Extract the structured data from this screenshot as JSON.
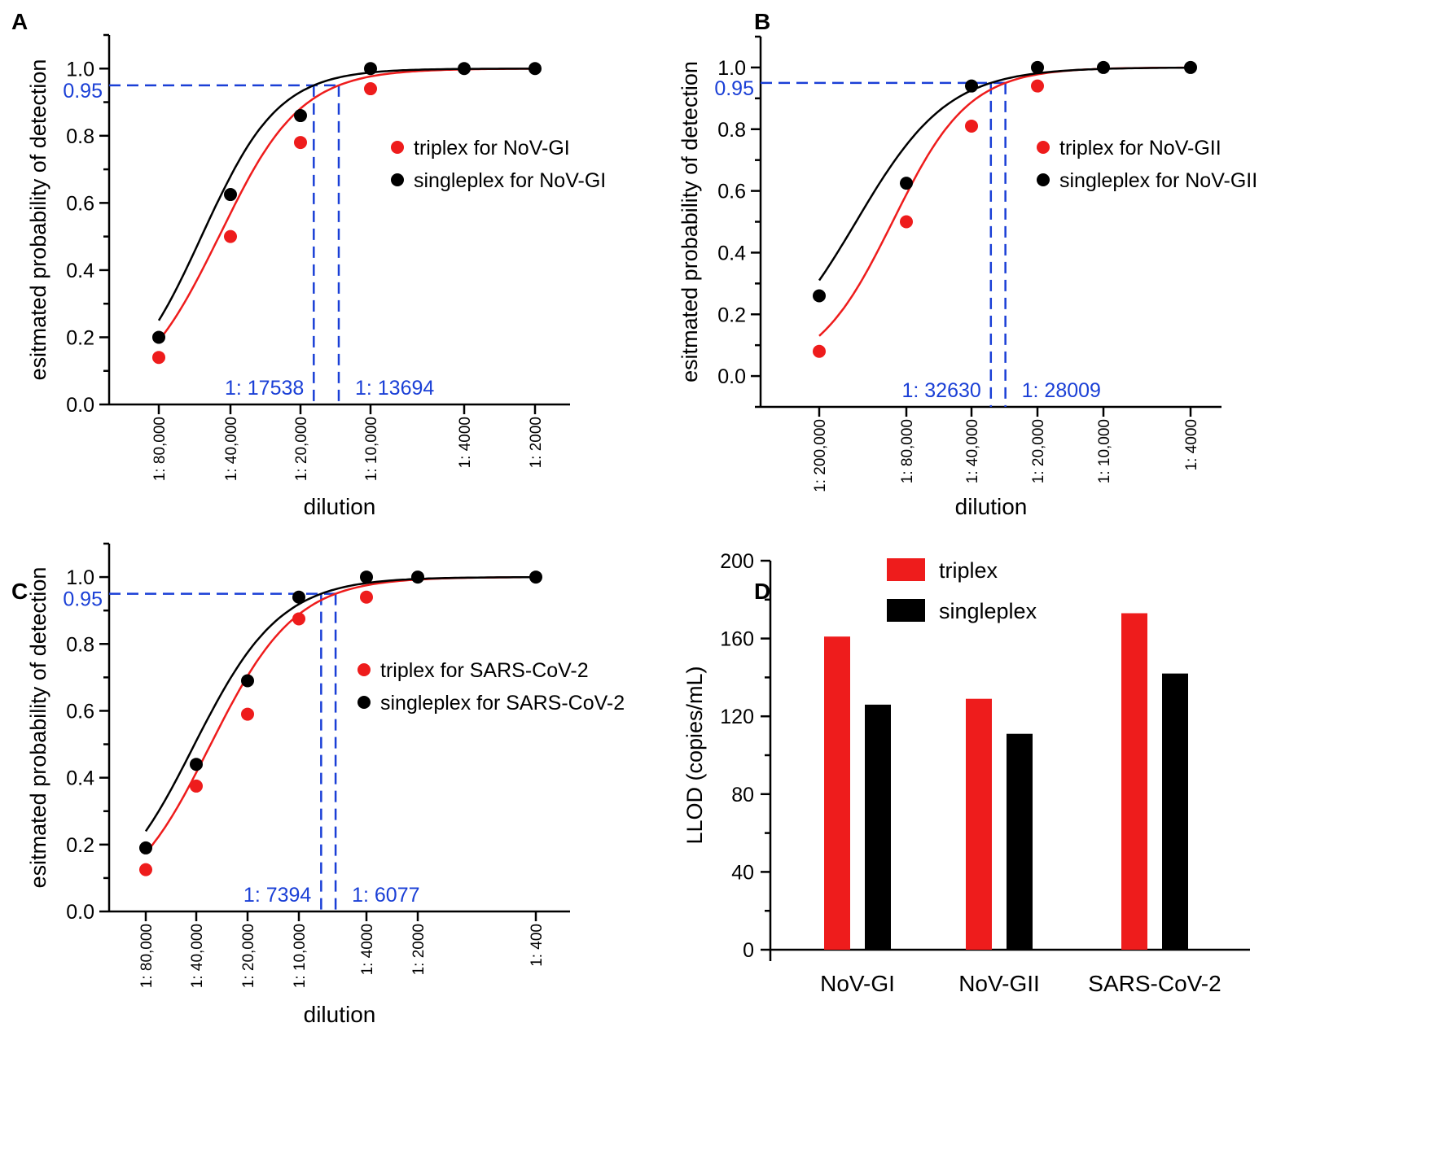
{
  "colors": {
    "triplex": "#ee1c1c",
    "singleplex": "#000000",
    "threshold": "#1a3fd6",
    "axis": "#000000"
  },
  "chart_data": [
    {
      "panel": "A",
      "type": "scatter",
      "xlabel": "dilution",
      "ylabel": "esitmated probability of detection",
      "x_tick_labels": [
        "1: 80,000",
        "1: 40,000",
        "1: 20,000",
        "1: 10,000",
        "1: 4000",
        "1: 2000"
      ],
      "x_dilution": [
        80000,
        40000,
        20000,
        10000,
        4000,
        2000
      ],
      "ylim": [
        0,
        1.1
      ],
      "y_ticks": [
        "0.0",
        "0.2",
        "0.4",
        "0.6",
        "0.8",
        "1.0"
      ],
      "threshold": {
        "y": 0.95,
        "label": "0.95"
      },
      "series": [
        {
          "name": "triplex for NoV-GI",
          "color_key": "triplex",
          "points": [
            [
              80000,
              0.14
            ],
            [
              40000,
              0.5
            ],
            [
              20000,
              0.78
            ],
            [
              10000,
              0.94
            ]
          ],
          "cutoff": {
            "x": 13694,
            "label": "1: 13694"
          }
        },
        {
          "name": "singleplex for NoV-GI",
          "color_key": "singleplex",
          "points": [
            [
              80000,
              0.2
            ],
            [
              40000,
              0.625
            ],
            [
              20000,
              0.86
            ],
            [
              10000,
              1.0
            ],
            [
              4000,
              1.0
            ],
            [
              2000,
              1.0
            ]
          ],
          "cutoff": {
            "x": 17538,
            "label": "1: 17538"
          }
        }
      ]
    },
    {
      "panel": "B",
      "type": "scatter",
      "xlabel": "dilution",
      "ylabel": "esitmated probability of detection",
      "x_tick_labels": [
        "1: 200,000",
        "1: 80,000",
        "1: 40,000",
        "1: 20,000",
        "1: 10,000",
        "1: 4000"
      ],
      "x_dilution": [
        200000,
        80000,
        40000,
        20000,
        10000,
        4000
      ],
      "ylim": [
        -0.1,
        1.1
      ],
      "y_ticks": [
        "0.0",
        "0.2",
        "0.4",
        "0.6",
        "0.8",
        "1.0"
      ],
      "threshold": {
        "y": 0.95,
        "label": "0.95"
      },
      "series": [
        {
          "name": "triplex for NoV-GII",
          "color_key": "triplex",
          "points": [
            [
              200000,
              0.08
            ],
            [
              80000,
              0.5
            ],
            [
              40000,
              0.81
            ],
            [
              20000,
              0.94
            ]
          ],
          "cutoff": {
            "x": 28009,
            "label": "1: 28009"
          }
        },
        {
          "name": "singleplex for NoV-GII",
          "color_key": "singleplex",
          "points": [
            [
              200000,
              0.26
            ],
            [
              80000,
              0.625
            ],
            [
              40000,
              0.94
            ],
            [
              20000,
              1.0
            ],
            [
              10000,
              1.0
            ],
            [
              4000,
              1.0
            ]
          ],
          "cutoff": {
            "x": 32630,
            "label": "1: 32630"
          }
        }
      ]
    },
    {
      "panel": "C",
      "type": "scatter",
      "xlabel": "dilution",
      "ylabel": "esitmated probability of detection",
      "x_tick_labels": [
        "1: 80,000",
        "1: 40,000",
        "1: 20,000",
        "1: 10,000",
        "1: 4000",
        "1: 2000",
        "1: 400"
      ],
      "x_dilution": [
        80000,
        40000,
        20000,
        10000,
        4000,
        2000,
        400
      ],
      "ylim": [
        0,
        1.1
      ],
      "y_ticks": [
        "0.0",
        "0.2",
        "0.4",
        "0.6",
        "0.8",
        "1.0"
      ],
      "threshold": {
        "y": 0.95,
        "label": "0.95"
      },
      "series": [
        {
          "name": "triplex for SARS-CoV-2",
          "color_key": "triplex",
          "points": [
            [
              80000,
              0.125
            ],
            [
              40000,
              0.375
            ],
            [
              20000,
              0.59
            ],
            [
              10000,
              0.875
            ],
            [
              4000,
              0.94
            ]
          ],
          "cutoff": {
            "x": 6077,
            "label": "1: 6077"
          }
        },
        {
          "name": "singleplex for SARS-CoV-2",
          "color_key": "singleplex",
          "points": [
            [
              80000,
              0.19
            ],
            [
              40000,
              0.44
            ],
            [
              20000,
              0.69
            ],
            [
              10000,
              0.94
            ],
            [
              4000,
              1.0
            ],
            [
              2000,
              1.0
            ],
            [
              400,
              1.0
            ]
          ],
          "cutoff": {
            "x": 7394,
            "label": "1: 7394"
          }
        }
      ]
    },
    {
      "panel": "D",
      "type": "bar",
      "categories": [
        "NoV-GI",
        "NoV-GII",
        "SARS-CoV-2"
      ],
      "ylabel": "LLOD (copies/mL)",
      "ylim": [
        0,
        200
      ],
      "y_ticks": [
        "0",
        "40",
        "80",
        "120",
        "160",
        "200"
      ],
      "series": [
        {
          "name": "triplex",
          "color_key": "triplex",
          "values": [
            161,
            129,
            173
          ]
        },
        {
          "name": "singleplex",
          "color_key": "singleplex",
          "values": [
            126,
            111,
            142
          ]
        }
      ]
    }
  ]
}
